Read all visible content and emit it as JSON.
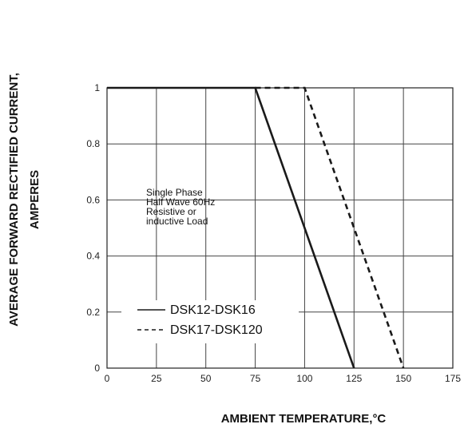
{
  "chart_data": {
    "type": "line",
    "title": "",
    "xlabel": "AMBIENT TEMPERATURE,°C",
    "ylabel_lines": [
      "AVERAGE FORWARD RECTIFIED CURRENT,",
      "AMPERES"
    ],
    "xlim": [
      0,
      175
    ],
    "ylim": [
      0,
      1
    ],
    "x_ticks": [
      0,
      25,
      50,
      75,
      100,
      125,
      150,
      175
    ],
    "y_ticks": [
      0,
      0.2,
      0.4,
      0.6,
      0.8,
      1
    ],
    "x_tick_labels": [
      "0",
      "25",
      "50",
      "75",
      "100",
      "125",
      "150",
      "175"
    ],
    "y_tick_labels": [
      "0",
      "0.2",
      "0.4",
      "0.6",
      "0.8",
      "1"
    ],
    "grid": true,
    "annotation_lines": [
      "Single Phase",
      "Half Wave 60Hz",
      "Resistive or",
      "inductive Load"
    ],
    "legend_position": "bottom-left",
    "series": [
      {
        "name": "DSK12-DSK16",
        "style": "solid",
        "color": "#1a1a1a",
        "x": [
          0,
          75,
          125
        ],
        "y": [
          1,
          1,
          0
        ]
      },
      {
        "name": "DSK17-DSK120",
        "style": "dashed",
        "color": "#1a1a1a",
        "x": [
          75,
          100,
          150
        ],
        "y": [
          1,
          1,
          0
        ]
      }
    ]
  }
}
